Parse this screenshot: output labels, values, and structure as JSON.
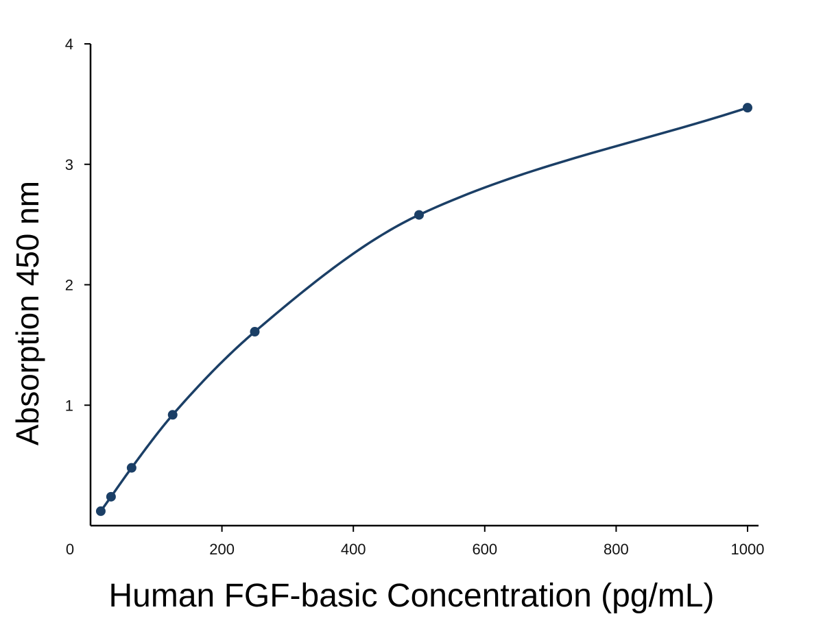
{
  "chart_data": {
    "type": "scatter",
    "title": "",
    "xlabel": "Human FGF-basic Concentration (pg/mL)",
    "ylabel": "Absorption 450 nm",
    "xlim": [
      0,
      1000
    ],
    "ylim": [
      0,
      4
    ],
    "x_ticks": [
      "0",
      "200",
      "400",
      "600",
      "800",
      "1000"
    ],
    "y_ticks": [
      "1",
      "2",
      "3",
      "4"
    ],
    "grid": false,
    "legend": "none",
    "series": [
      {
        "x": [
          15.6,
          31.2,
          62.5,
          125,
          250,
          500,
          1000
        ],
        "y": [
          0.12,
          0.24,
          0.48,
          0.92,
          1.61,
          2.58,
          3.47
        ],
        "fit": "smooth-curve"
      }
    ],
    "colors": {
      "series": "#1b3f66",
      "axis": "#000000"
    }
  }
}
